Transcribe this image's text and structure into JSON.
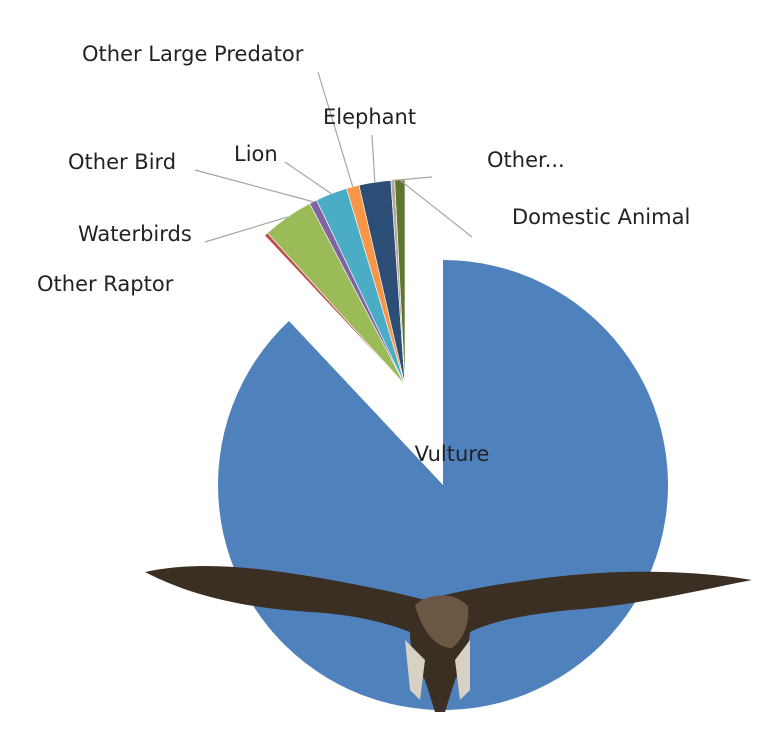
{
  "chart_data": {
    "type": "pie",
    "categories": [
      "Vulture",
      "Other Raptor",
      "Waterbirds",
      "Other Bird",
      "Lion",
      "Other Large Predator",
      "Elephant",
      "Other...",
      "Domestic Animal"
    ],
    "values": [
      88,
      0.3,
      4,
      0.6,
      2.5,
      1,
      2.5,
      0.3,
      0.8
    ],
    "colors": [
      "#4f81bd",
      "#c0504d",
      "#9bbb59",
      "#8064a2",
      "#4bacc6",
      "#f79646",
      "#2c4d75",
      "#b7a99a",
      "#5f7530"
    ]
  }
}
